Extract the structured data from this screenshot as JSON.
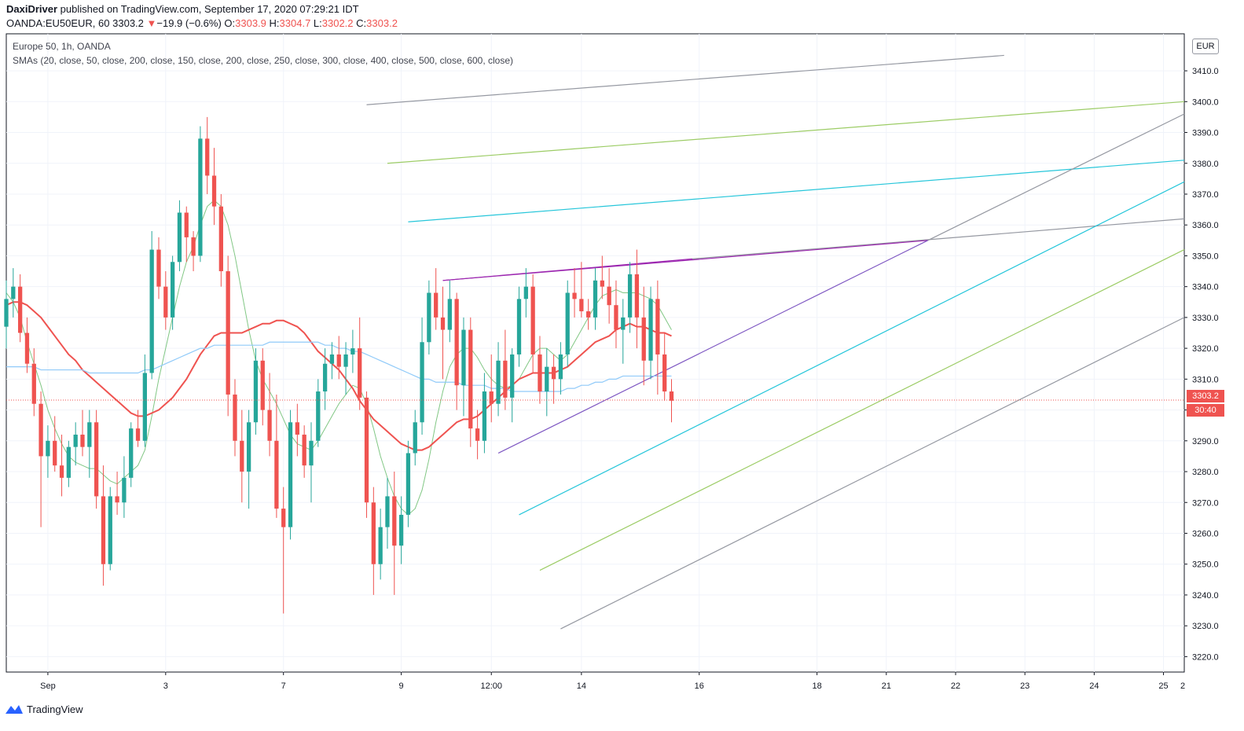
{
  "header": {
    "author": "DaxiDriver",
    "published": "published on TradingView.com, September 17, 2020 07:29:21 IDT",
    "symbol": "OANDA:EU50EUR, 60",
    "last": "3303.2",
    "change_arrow": "▼",
    "change": "−19.9 (−0.6%)",
    "o_label": "O:",
    "o": "3303.9",
    "h_label": "H:",
    "h": "3304.7",
    "l_label": "L:",
    "l": "3302.2",
    "c_label": "C:",
    "c": "3303.2"
  },
  "legend": {
    "title": "Europe 50, 1h, OANDA",
    "indicators": "SMAs (20, close, 50, close, 200, close, 150, close, 200, close, 250, close, 300, close, 400, close, 500, close, 600, close)"
  },
  "price_axis": {
    "currency": "EUR",
    "current_price": "3303.2",
    "countdown": "30:40"
  },
  "footer": {
    "brand": "TradingView"
  },
  "colors": {
    "up": "#26a69a",
    "down": "#ef5350",
    "sma20": "#81c784",
    "sma50": "#ef5350",
    "sma200": "#90caf9",
    "channel": "#9c27b0"
  },
  "chart_data": {
    "type": "candlestick",
    "title": "Europe 50, 1h, OANDA",
    "ylim": [
      3215,
      3422
    ],
    "yticks": [
      3220,
      3230,
      3240,
      3250,
      3260,
      3270,
      3280,
      3290,
      3300,
      3310,
      3320,
      3330,
      3340,
      3350,
      3360,
      3370,
      3380,
      3390,
      3400,
      3410
    ],
    "ytick_labels": [
      "3220.0",
      "3230.0",
      "3240.0",
      "3250.0",
      "3260.0",
      "3270.0",
      "3280.0",
      "3290.0",
      "3300.0",
      "3310.0",
      "3320.0",
      "3330.0",
      "3340.0",
      "3350.0",
      "3360.0",
      "3370.0",
      "3380.0",
      "3390.0",
      "3400.0",
      "3410.0"
    ],
    "xlim": [
      0,
      170
    ],
    "xticks": [
      6,
      23,
      40,
      57,
      70,
      83,
      100,
      117,
      127,
      137,
      147,
      157,
      167
    ],
    "xtick_labels": [
      "Sep",
      "3",
      "7",
      "9",
      "12:00",
      "14",
      "16",
      "18",
      "21",
      "22",
      "23",
      "24",
      "25"
    ],
    "x_last_label": "2",
    "grid": true,
    "current_price": 3303.2,
    "candles": [
      [
        0,
        3327,
        3342,
        3320,
        3336
      ],
      [
        1,
        3336,
        3346,
        3330,
        3340
      ],
      [
        2,
        3340,
        3344,
        3322,
        3325
      ],
      [
        3,
        3325,
        3330,
        3312,
        3315
      ],
      [
        4,
        3315,
        3320,
        3298,
        3302
      ],
      [
        5,
        3302,
        3306,
        3262,
        3285
      ],
      [
        6,
        3285,
        3295,
        3278,
        3290
      ],
      [
        7,
        3290,
        3298,
        3280,
        3282
      ],
      [
        8,
        3282,
        3292,
        3272,
        3278
      ],
      [
        9,
        3278,
        3290,
        3275,
        3288
      ],
      [
        10,
        3288,
        3296,
        3282,
        3292
      ],
      [
        11,
        3292,
        3300,
        3285,
        3288
      ],
      [
        12,
        3288,
        3300,
        3278,
        3296
      ],
      [
        13,
        3296,
        3300,
        3268,
        3272
      ],
      [
        14,
        3272,
        3282,
        3243,
        3250
      ],
      [
        15,
        3250,
        3275,
        3248,
        3272
      ],
      [
        16,
        3272,
        3280,
        3266,
        3270
      ],
      [
        17,
        3270,
        3285,
        3265,
        3278
      ],
      [
        18,
        3278,
        3296,
        3275,
        3294
      ],
      [
        19,
        3294,
        3300,
        3288,
        3290
      ],
      [
        20,
        3290,
        3318,
        3288,
        3312
      ],
      [
        21,
        3312,
        3358,
        3310,
        3352
      ],
      [
        22,
        3352,
        3356,
        3336,
        3340
      ],
      [
        23,
        3340,
        3345,
        3326,
        3330
      ],
      [
        24,
        3330,
        3350,
        3326,
        3348
      ],
      [
        25,
        3348,
        3368,
        3345,
        3364
      ],
      [
        26,
        3364,
        3366,
        3348,
        3356
      ],
      [
        27,
        3356,
        3358,
        3345,
        3350
      ],
      [
        28,
        3350,
        3392,
        3348,
        3388
      ],
      [
        29,
        3388,
        3395,
        3370,
        3376
      ],
      [
        30,
        3376,
        3385,
        3360,
        3366
      ],
      [
        31,
        3366,
        3370,
        3340,
        3345
      ],
      [
        32,
        3345,
        3350,
        3298,
        3305
      ],
      [
        33,
        3305,
        3310,
        3285,
        3290
      ],
      [
        34,
        3290,
        3300,
        3270,
        3280
      ],
      [
        35,
        3280,
        3300,
        3268,
        3296
      ],
      [
        36,
        3296,
        3320,
        3292,
        3316
      ],
      [
        37,
        3316,
        3320,
        3295,
        3300
      ],
      [
        38,
        3300,
        3312,
        3285,
        3290
      ],
      [
        39,
        3290,
        3305,
        3265,
        3268
      ],
      [
        40,
        3268,
        3275,
        3234,
        3262
      ],
      [
        41,
        3262,
        3300,
        3258,
        3296
      ],
      [
        42,
        3296,
        3302,
        3285,
        3292
      ],
      [
        43,
        3292,
        3295,
        3278,
        3282
      ],
      [
        44,
        3282,
        3296,
        3270,
        3290
      ],
      [
        45,
        3290,
        3310,
        3288,
        3306
      ],
      [
        46,
        3306,
        3320,
        3300,
        3315
      ],
      [
        47,
        3315,
        3322,
        3310,
        3318
      ],
      [
        48,
        3318,
        3324,
        3310,
        3314
      ],
      [
        49,
        3314,
        3322,
        3305,
        3318
      ],
      [
        50,
        3318,
        3326,
        3312,
        3320
      ],
      [
        51,
        3320,
        3330,
        3300,
        3304
      ],
      [
        52,
        3304,
        3306,
        3265,
        3270
      ],
      [
        53,
        3270,
        3275,
        3240,
        3250
      ],
      [
        54,
        3250,
        3268,
        3245,
        3262
      ],
      [
        55,
        3262,
        3278,
        3255,
        3272
      ],
      [
        56,
        3272,
        3280,
        3240,
        3256
      ],
      [
        57,
        3256,
        3272,
        3250,
        3266
      ],
      [
        58,
        3266,
        3290,
        3262,
        3286
      ],
      [
        59,
        3286,
        3300,
        3282,
        3296
      ],
      [
        60,
        3296,
        3330,
        3292,
        3322
      ],
      [
        61,
        3322,
        3342,
        3318,
        3338
      ],
      [
        62,
        3338,
        3346,
        3326,
        3330
      ],
      [
        63,
        3330,
        3340,
        3310,
        3326
      ],
      [
        64,
        3326,
        3342,
        3322,
        3336
      ],
      [
        65,
        3336,
        3338,
        3300,
        3308
      ],
      [
        66,
        3308,
        3330,
        3298,
        3326
      ],
      [
        67,
        3326,
        3330,
        3288,
        3294
      ],
      [
        68,
        3294,
        3300,
        3284,
        3290
      ],
      [
        69,
        3290,
        3312,
        3286,
        3306
      ],
      [
        70,
        3306,
        3318,
        3296,
        3302
      ],
      [
        71,
        3302,
        3322,
        3298,
        3316
      ],
      [
        72,
        3316,
        3326,
        3300,
        3304
      ],
      [
        73,
        3304,
        3320,
        3296,
        3318
      ],
      [
        74,
        3318,
        3340,
        3314,
        3336
      ],
      [
        75,
        3336,
        3346,
        3330,
        3340
      ],
      [
        76,
        3340,
        3344,
        3312,
        3318
      ],
      [
        77,
        3318,
        3324,
        3302,
        3306
      ],
      [
        78,
        3306,
        3320,
        3298,
        3314
      ],
      [
        79,
        3314,
        3318,
        3302,
        3310
      ],
      [
        80,
        3310,
        3322,
        3305,
        3318
      ],
      [
        81,
        3318,
        3342,
        3314,
        3338
      ],
      [
        82,
        3338,
        3346,
        3330,
        3336
      ],
      [
        83,
        3336,
        3348,
        3330,
        3332
      ],
      [
        84,
        3332,
        3336,
        3326,
        3330
      ],
      [
        85,
        3330,
        3346,
        3326,
        3342
      ],
      [
        86,
        3342,
        3350,
        3336,
        3340
      ],
      [
        87,
        3340,
        3346,
        3328,
        3334
      ],
      [
        88,
        3334,
        3342,
        3320,
        3326
      ],
      [
        89,
        3326,
        3336,
        3315,
        3330
      ],
      [
        90,
        3330,
        3348,
        3325,
        3344
      ],
      [
        91,
        3344,
        3352,
        3320,
        3330
      ],
      [
        92,
        3330,
        3340,
        3308,
        3316
      ],
      [
        93,
        3316,
        3340,
        3310,
        3336
      ],
      [
        94,
        3336,
        3342,
        3305,
        3318
      ],
      [
        95,
        3318,
        3325,
        3303,
        3306
      ],
      [
        96,
        3306,
        3310,
        3296,
        3303
      ]
    ],
    "series": [
      {
        "name": "SMA 20",
        "values": [
          3338,
          3335,
          3330,
          3322,
          3315,
          3308,
          3300,
          3294,
          3289,
          3285,
          3283,
          3282,
          3281,
          3281,
          3279,
          3277,
          3276,
          3278,
          3280,
          3282,
          3287,
          3298,
          3310,
          3320,
          3330,
          3340,
          3348,
          3353,
          3360,
          3366,
          3368,
          3366,
          3360,
          3350,
          3338,
          3326,
          3316,
          3310,
          3306,
          3302,
          3297,
          3292,
          3289,
          3288,
          3287,
          3290,
          3294,
          3298,
          3302,
          3305,
          3308,
          3307,
          3302,
          3294,
          3285,
          3278,
          3272,
          3268,
          3266,
          3268,
          3274,
          3284,
          3296,
          3306,
          3314,
          3318,
          3320,
          3320,
          3317,
          3313,
          3310,
          3308,
          3307,
          3308,
          3310,
          3314,
          3318,
          3320,
          3320,
          3318,
          3316,
          3318,
          3322,
          3326,
          3330,
          3334,
          3337,
          3338,
          3339,
          3338,
          3338,
          3338,
          3337,
          3336,
          3334,
          3330,
          3326
        ]
      },
      {
        "name": "SMA 50",
        "values": [
          3334,
          3335,
          3335,
          3334,
          3332,
          3330,
          3327,
          3324,
          3321,
          3318,
          3316,
          3313,
          3311,
          3309,
          3307,
          3305,
          3303,
          3301,
          3299,
          3298,
          3298,
          3299,
          3300,
          3302,
          3304,
          3307,
          3310,
          3314,
          3318,
          3321,
          3324,
          3325,
          3325,
          3325,
          3325,
          3326,
          3327,
          3328,
          3328,
          3329,
          3329,
          3328,
          3327,
          3325,
          3322,
          3319,
          3317,
          3315,
          3313,
          3310,
          3307,
          3303,
          3300,
          3297,
          3295,
          3293,
          3291,
          3289,
          3288,
          3287,
          3287,
          3288,
          3290,
          3292,
          3294,
          3296,
          3297,
          3297,
          3298,
          3300,
          3302,
          3304,
          3306,
          3308,
          3310,
          3311,
          3312,
          3312,
          3312,
          3312,
          3313,
          3314,
          3316,
          3318,
          3320,
          3322,
          3323,
          3324,
          3326,
          3327,
          3328,
          3327,
          3327,
          3326,
          3325,
          3325,
          3324
        ]
      },
      {
        "name": "SMA 200",
        "values": [
          3314,
          3314,
          3314,
          3314,
          3314,
          3313,
          3313,
          3313,
          3313,
          3313,
          3313,
          3313,
          3312,
          3312,
          3312,
          3312,
          3312,
          3312,
          3312,
          3312,
          3313,
          3313,
          3314,
          3315,
          3316,
          3317,
          3318,
          3319,
          3320,
          3320,
          3321,
          3321,
          3321,
          3321,
          3321,
          3321,
          3321,
          3321,
          3322,
          3322,
          3322,
          3322,
          3322,
          3322,
          3322,
          3322,
          3321,
          3321,
          3320,
          3320,
          3319,
          3319,
          3318,
          3317,
          3316,
          3315,
          3314,
          3313,
          3312,
          3311,
          3310,
          3310,
          3309,
          3309,
          3309,
          3309,
          3308,
          3308,
          3308,
          3308,
          3307,
          3307,
          3307,
          3306,
          3306,
          3306,
          3306,
          3306,
          3306,
          3306,
          3306,
          3307,
          3307,
          3308,
          3308,
          3309,
          3309,
          3310,
          3310,
          3311,
          3311,
          3311,
          3311,
          3311,
          3311,
          3311,
          3311
        ]
      }
    ],
    "drawings": [
      {
        "name": "channel-upper",
        "color": "#9c27b0",
        "points": [
          [
            63,
            3342
          ],
          [
            99,
            3349
          ]
        ]
      },
      {
        "name": "channel-upper-ext",
        "color": "#9598a1",
        "points": [
          [
            99,
            3349
          ],
          [
            170,
            3362
          ]
        ]
      },
      {
        "name": "channel-rising-upper",
        "color": "#9c27b0",
        "points": [
          [
            63,
            3342
          ],
          [
            133,
            3355
          ]
        ]
      },
      {
        "name": "channel-lower",
        "color": "#7e57c2",
        "points": [
          [
            71,
            3286
          ],
          [
            133,
            3355
          ]
        ]
      },
      {
        "name": "fib-line-1",
        "color": "#9598a1",
        "points": [
          [
            52,
            3399
          ],
          [
            144,
            3415
          ]
        ]
      },
      {
        "name": "fib-line-2",
        "color": "#9ccc65",
        "points": [
          [
            55,
            3380
          ],
          [
            170,
            3400
          ]
        ]
      },
      {
        "name": "fib-line-3",
        "color": "#26c6da",
        "points": [
          [
            58,
            3361
          ],
          [
            170,
            3381
          ]
        ]
      },
      {
        "name": "fan-1",
        "color": "#9598a1",
        "points": [
          [
            133,
            3355
          ],
          [
            170,
            3396
          ]
        ]
      },
      {
        "name": "fan-2",
        "color": "#26c6da",
        "points": [
          [
            74,
            3266
          ],
          [
            170,
            3374
          ]
        ]
      },
      {
        "name": "fan-3",
        "color": "#9ccc65",
        "points": [
          [
            77,
            3248
          ],
          [
            170,
            3352
          ]
        ]
      },
      {
        "name": "fan-4",
        "color": "#9598a1",
        "points": [
          [
            80,
            3229
          ],
          [
            170,
            3330
          ]
        ]
      }
    ]
  }
}
